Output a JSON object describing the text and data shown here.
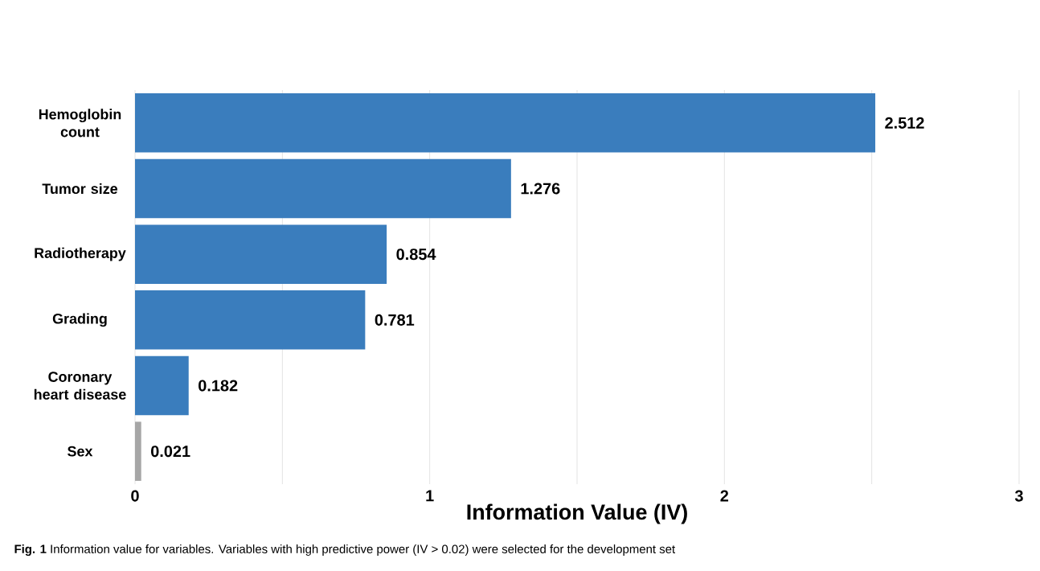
{
  "chart_data": {
    "type": "bar",
    "orientation": "horizontal",
    "categories": [
      "Hemoglobin count",
      "Tumor size",
      "Radiotherapy",
      "Grading",
      "Coronary heart disease",
      "Sex"
    ],
    "values": [
      2.512,
      1.276,
      0.854,
      0.781,
      0.182,
      0.021
    ],
    "colors": [
      "#3a7dbd",
      "#3a7dbd",
      "#3a7dbd",
      "#3a7dbd",
      "#3a7dbd",
      "#a6a6a6"
    ],
    "data_labels": true,
    "xlabel": "Information Value (IV)",
    "xlim": [
      0,
      3
    ],
    "xticks": [
      0,
      {
        "value": 0.5,
        "label": null
      },
      1,
      {
        "value": 1.5,
        "label": null
      },
      2,
      {
        "value": 2.5,
        "label": null
      },
      3
    ],
    "grid": "x",
    "annotations": [
      "**Fig. 1** Information value for variables. Variables with high predictive power (IV > 0.02) were selected for the development set"
    ]
  }
}
